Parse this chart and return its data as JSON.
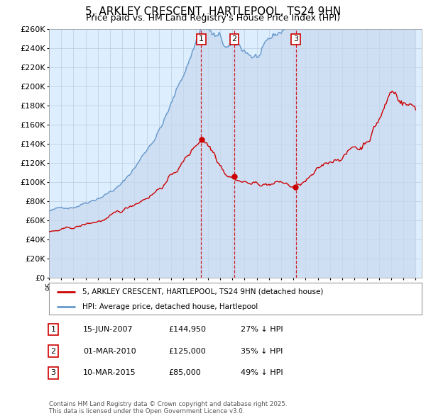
{
  "title": "5, ARKLEY CRESCENT, HARTLEPOOL, TS24 9HN",
  "subtitle": "Price paid vs. HM Land Registry's House Price Index (HPI)",
  "title_fontsize": 11,
  "subtitle_fontsize": 9,
  "background_color": "#ffffff",
  "plot_bg_color": "#ddeeff",
  "grid_color": "#bbccdd",
  "hpi_color": "#6699cc",
  "hpi_fill_color": "#aabbdd",
  "price_color": "#cc0000",
  "vline_color": "#cc0000",
  "ylim": [
    0,
    260000
  ],
  "ytick_step": 20000,
  "transactions": [
    {
      "date_num": 2007.46,
      "price": 144950,
      "label": "1"
    },
    {
      "date_num": 2010.17,
      "price": 125000,
      "label": "2"
    },
    {
      "date_num": 2015.19,
      "price": 85000,
      "label": "3"
    }
  ],
  "legend_entries": [
    {
      "label": "5, ARKLEY CRESCENT, HARTLEPOOL, TS24 9HN (detached house)",
      "color": "#cc0000"
    },
    {
      "label": "HPI: Average price, detached house, Hartlepool",
      "color": "#6699cc"
    }
  ],
  "table_rows": [
    {
      "num": "1",
      "date": "15-JUN-2007",
      "price": "£144,950",
      "pct": "27% ↓ HPI"
    },
    {
      "num": "2",
      "date": "01-MAR-2010",
      "price": "£125,000",
      "pct": "35% ↓ HPI"
    },
    {
      "num": "3",
      "date": "10-MAR-2015",
      "price": "£85,000",
      "pct": "49% ↓ HPI"
    }
  ],
  "footnote": "Contains HM Land Registry data © Crown copyright and database right 2025.\nThis data is licensed under the Open Government Licence v3.0."
}
